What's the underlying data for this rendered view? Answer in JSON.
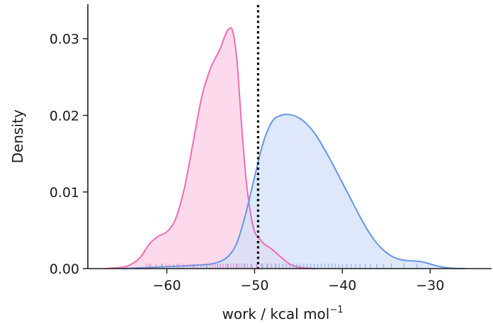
{
  "chart_data": {
    "type": "area",
    "title": "",
    "xlabel": "work / kcal mol",
    "xlabel_superscript": "−1",
    "ylabel": "Density",
    "xlim": [
      -69,
      -23
    ],
    "ylim": [
      0,
      0.0345
    ],
    "x_ticks": [
      -60,
      -50,
      -40,
      -30
    ],
    "x_tick_labels": [
      "−60",
      "−50",
      "−40",
      "−30"
    ],
    "y_ticks": [
      0,
      0.01,
      0.02,
      0.03
    ],
    "y_tick_labels": [
      "0.00",
      "0.01",
      "0.02",
      "0.03"
    ],
    "grid": false,
    "vline": {
      "x": -49.6,
      "style": "dotted",
      "color": "#000000"
    },
    "series": [
      {
        "color": "#f06bb5",
        "fill": "#fcd3e8",
        "x": [
          -67,
          -65,
          -64,
          -63,
          -62,
          -61,
          -60,
          -59,
          -58,
          -57,
          -56,
          -55,
          -54,
          -53.5,
          -53,
          -52.5,
          -52,
          -51.5,
          -51,
          -50.5,
          -50,
          -49.5,
          -49,
          -48,
          -47,
          -46,
          -45,
          -44,
          -43
        ],
        "y": [
          0,
          0.0002,
          0.0006,
          0.0015,
          0.0032,
          0.0042,
          0.0048,
          0.0065,
          0.0105,
          0.0165,
          0.0225,
          0.0262,
          0.0285,
          0.03,
          0.0312,
          0.031,
          0.027,
          0.019,
          0.012,
          0.0075,
          0.0048,
          0.004,
          0.0033,
          0.0025,
          0.0015,
          0.0006,
          0.0002,
          5e-05,
          0
        ],
        "rug": [
          -62.3,
          -61.8,
          -61.2,
          -60.6,
          -60.1,
          -59.7,
          -59.2,
          -58.6,
          -58.1,
          -57.7,
          -57.3,
          -56.9,
          -56.5,
          -56.1,
          -55.8,
          -55.4,
          -55.1,
          -54.8,
          -54.5,
          -54.2,
          -53.9,
          -53.6,
          -53.3,
          -53.0,
          -52.7,
          -52.4,
          -52.1,
          -51.8,
          -51.5,
          -51.2,
          -50.8,
          -50.3,
          -49.8,
          -49.2,
          -48.5,
          -47.6
        ]
      },
      {
        "color": "#6495ed",
        "fill": "#d3e0f8",
        "x": [
          -65,
          -63,
          -61,
          -59,
          -57,
          -55,
          -54,
          -53,
          -52,
          -51,
          -50,
          -49,
          -48,
          -47,
          -46,
          -45,
          -44,
          -43,
          -42,
          -41,
          -40,
          -39,
          -38,
          -37,
          -36,
          -35,
          -34,
          -33,
          -32,
          -31,
          -30,
          -29,
          -28,
          -27,
          -26
        ],
        "y": [
          0,
          0.0001,
          0.0002,
          0.0003,
          0.0004,
          0.0006,
          0.0009,
          0.0016,
          0.0034,
          0.0072,
          0.012,
          0.0165,
          0.0192,
          0.02,
          0.0201,
          0.0197,
          0.0188,
          0.0174,
          0.0155,
          0.0134,
          0.0112,
          0.009,
          0.0068,
          0.0048,
          0.0032,
          0.0021,
          0.0014,
          0.0011,
          0.001,
          0.0009,
          0.0006,
          0.0003,
          0.0001,
          2e-05,
          0
        ],
        "rug": [
          -62.0,
          -60.5,
          -58.8,
          -57.0,
          -55.5,
          -54.2,
          -53.1,
          -52.0,
          -51.1,
          -50.4,
          -49.7,
          -49.1,
          -48.6,
          -48.1,
          -47.6,
          -47.2,
          -46.8,
          -46.4,
          -46.0,
          -45.6,
          -45.2,
          -44.8,
          -44.4,
          -44.0,
          -43.6,
          -43.2,
          -42.8,
          -42.4,
          -42.0,
          -41.6,
          -41.2,
          -40.8,
          -40.4,
          -40.0,
          -39.5,
          -39.0,
          -38.5,
          -38.0,
          -37.4,
          -36.8,
          -36.1,
          -35.3,
          -34.4,
          -33.0,
          -31.5
        ]
      }
    ]
  }
}
